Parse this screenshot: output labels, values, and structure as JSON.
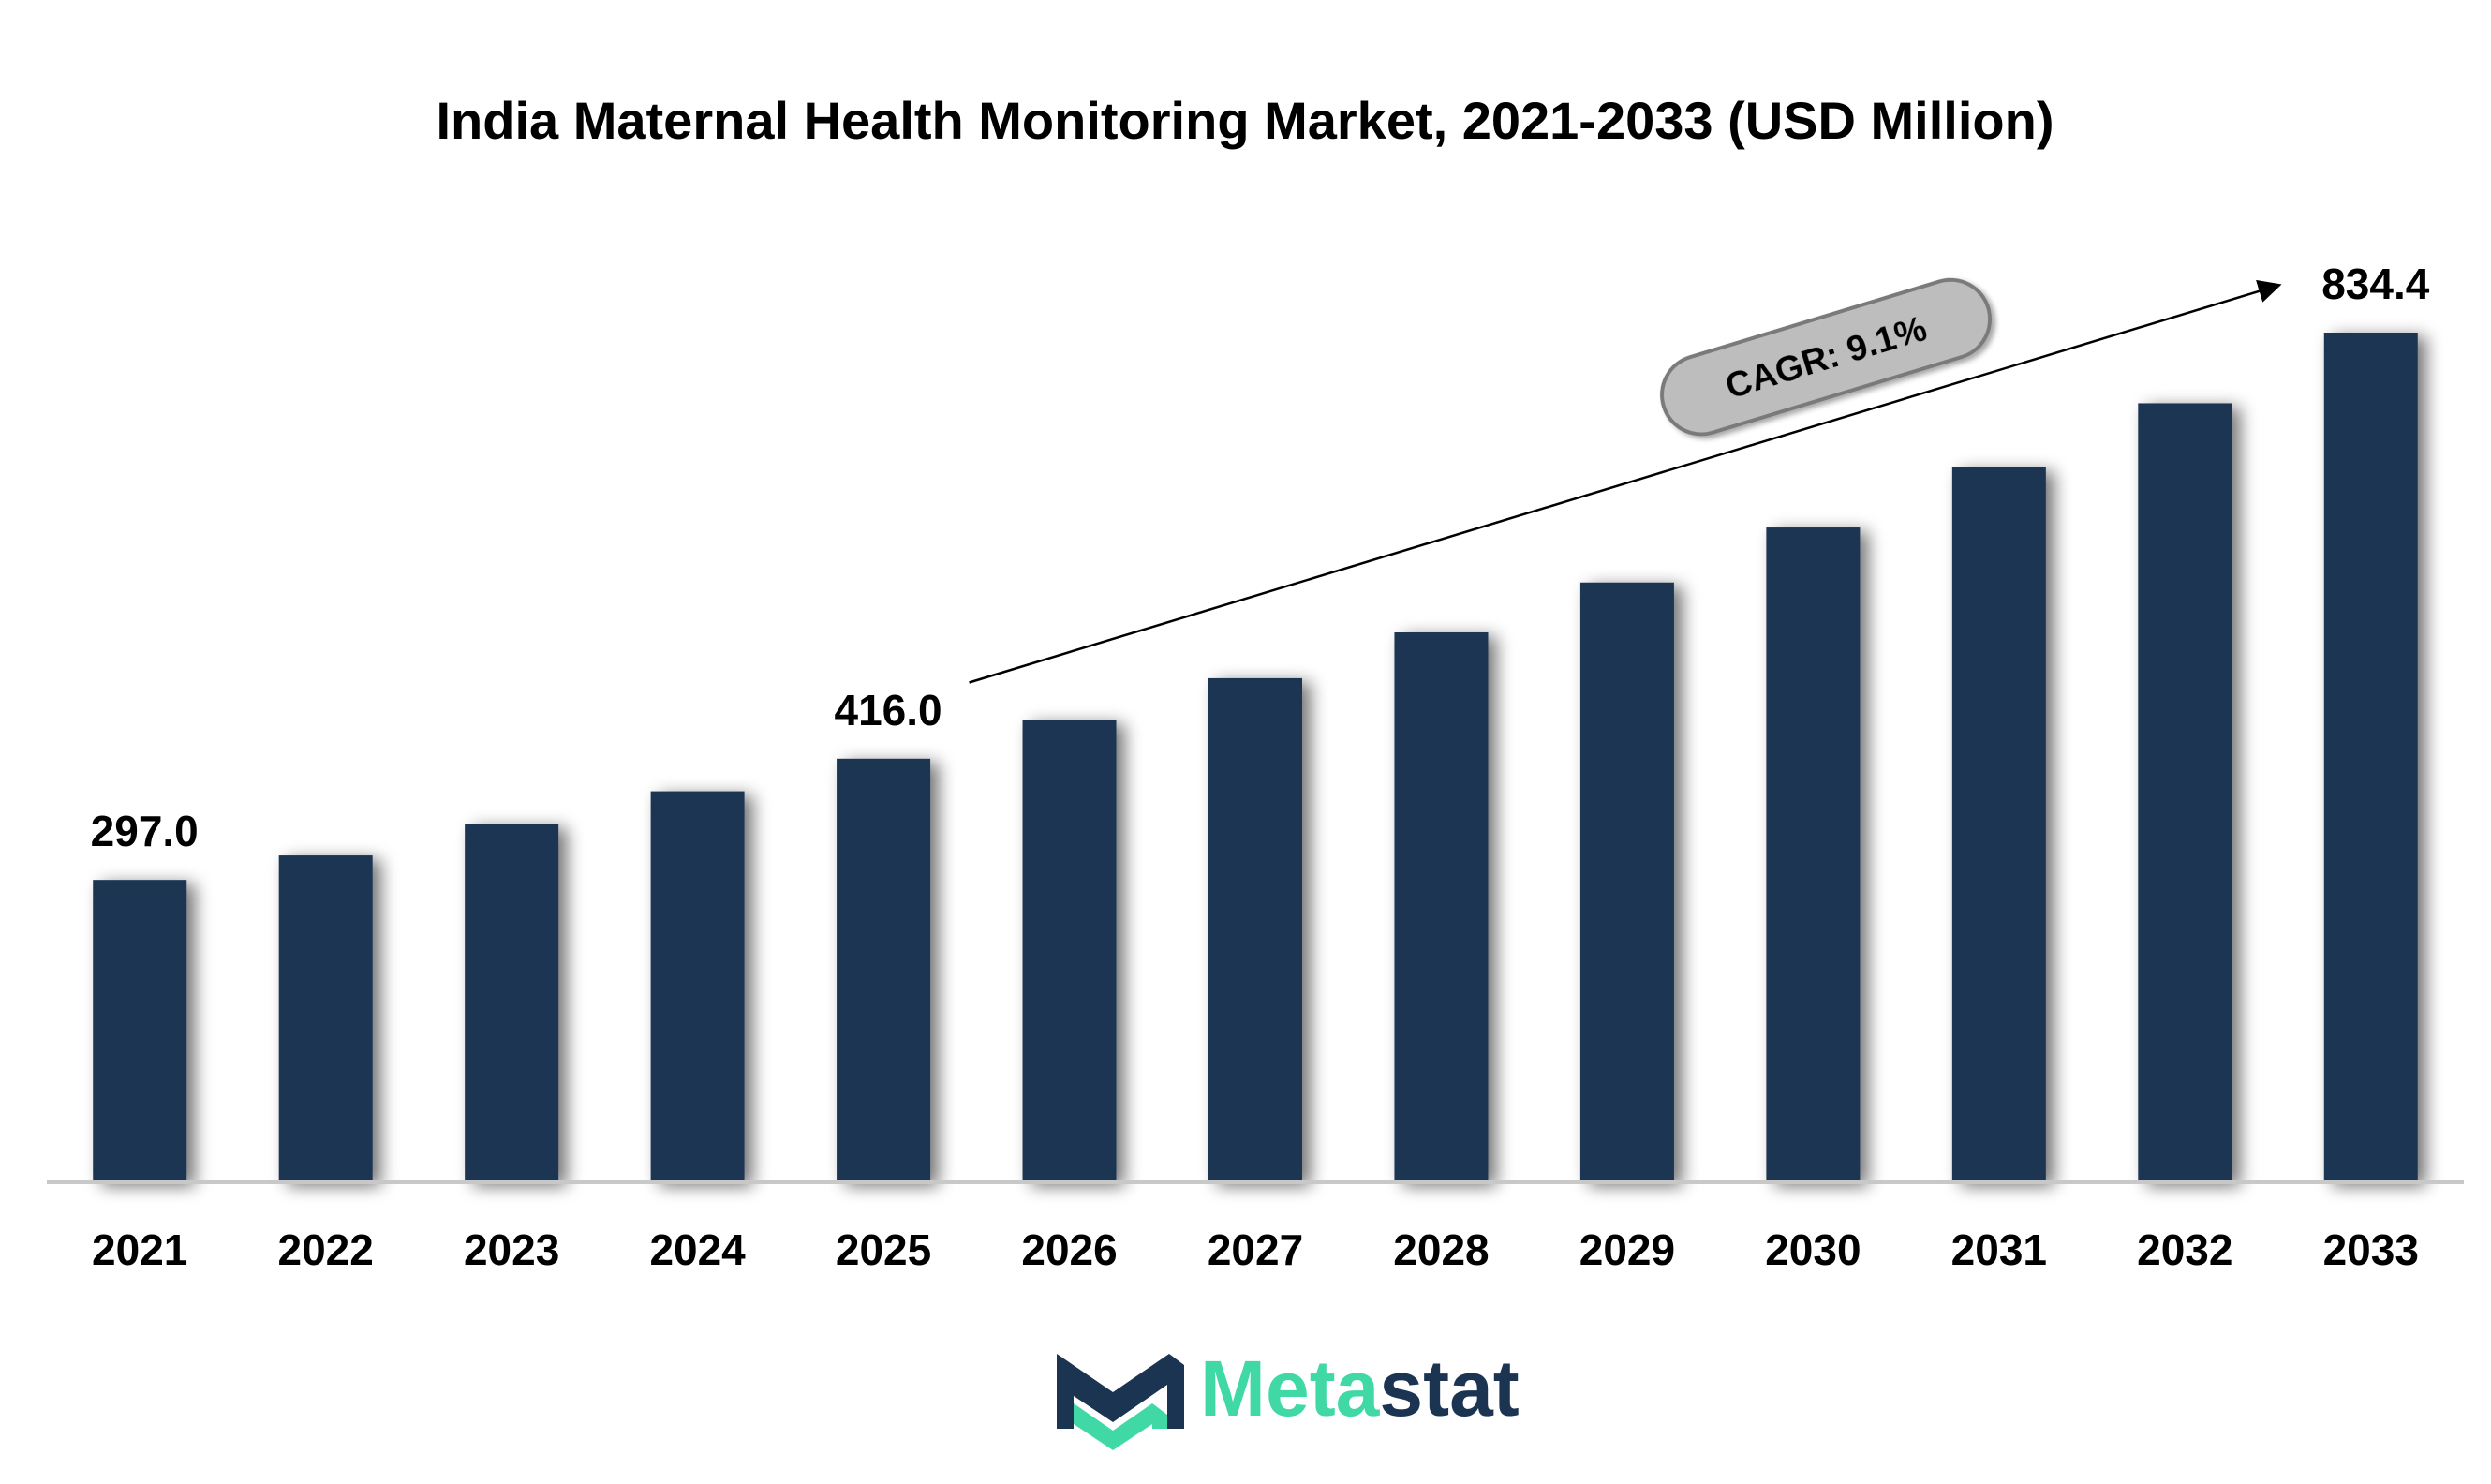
{
  "chart_data": {
    "type": "bar",
    "title": "India Maternal Health Monitoring Market, 2021-2033 (USD Million)",
    "xlabel": "",
    "ylabel": "",
    "categories": [
      "2021",
      "2022",
      "2023",
      "2024",
      "2025",
      "2026",
      "2027",
      "2028",
      "2029",
      "2030",
      "2031",
      "2032",
      "2033"
    ],
    "values": [
      297.0,
      321.0,
      352.0,
      384.0,
      416.0,
      454.0,
      495.0,
      540.0,
      589.0,
      643.0,
      702.0,
      765.0,
      834.4
    ],
    "data_labels": [
      {
        "category": "2021",
        "text": "297.0"
      },
      {
        "category": "2025",
        "text": "416.0"
      },
      {
        "category": "2033",
        "text": "834.4"
      }
    ],
    "ylim": [
      0,
      900
    ],
    "grid": false,
    "legend": "none",
    "annotation": {
      "text": "CAGR: 9.1%",
      "from_category": "2026",
      "to_category": "2033"
    },
    "colors": {
      "bar": "#1b3452",
      "axis": "#c8c8c8",
      "arrow": "#000000",
      "badge_fill": "#bdbdbd",
      "badge_stroke": "#7a7a7a"
    }
  },
  "brand": {
    "name_part1": "Meta",
    "name_part2": "stat",
    "color_part1": "#40d9a6",
    "color_part2": "#1b3452",
    "icon": "metastat-m-logo-icon"
  }
}
